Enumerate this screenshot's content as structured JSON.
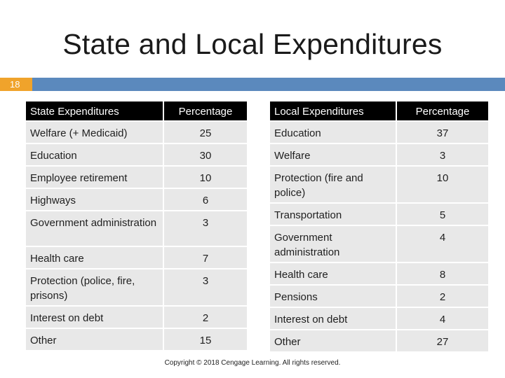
{
  "slide": {
    "title": "State and Local Expenditures",
    "number": "18",
    "copyright": "Copyright © 2018 Cengage Learning. All rights reserved."
  },
  "state_table": {
    "headers": [
      "State Expenditures",
      "Percentage"
    ],
    "rows": [
      {
        "item": "Welfare (+ Medicaid)",
        "pct": "25"
      },
      {
        "item": "Education",
        "pct": "30"
      },
      {
        "item": "Employee retirement",
        "pct": "10"
      },
      {
        "item": "Highways",
        "pct": "6"
      },
      {
        "item": "Government administration",
        "pct": "3"
      },
      {
        "item": "Health care",
        "pct": "7"
      },
      {
        "item": "Protection (police, fire, prisons)",
        "pct": "3"
      },
      {
        "item": "Interest on debt",
        "pct": "2"
      },
      {
        "item": "Other",
        "pct": "15"
      }
    ]
  },
  "local_table": {
    "headers": [
      "Local Expenditures",
      "Percentage"
    ],
    "rows": [
      {
        "item": "Education",
        "pct": "37"
      },
      {
        "item": "Welfare",
        "pct": "3"
      },
      {
        "item": "Protection (fire and police)",
        "pct": "10"
      },
      {
        "item": "Transportation",
        "pct": "5"
      },
      {
        "item": "Government administration",
        "pct": "4"
      },
      {
        "item": "Health care",
        "pct": "8"
      },
      {
        "item": "Pensions",
        "pct": "2"
      },
      {
        "item": "Interest on debt",
        "pct": "4"
      },
      {
        "item": "Other",
        "pct": "27"
      }
    ]
  }
}
